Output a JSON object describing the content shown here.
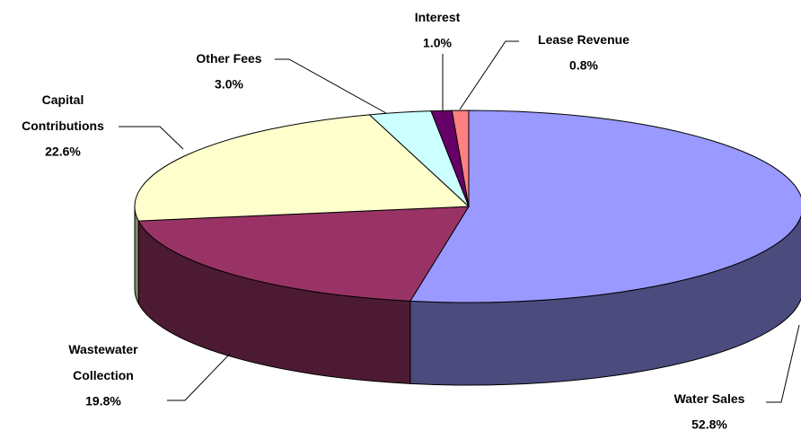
{
  "chart_data": {
    "type": "pie3d",
    "categories": [
      "Water Sales",
      "Wastewater Collection",
      "Capital Contributions",
      "Other Fees",
      "Interest",
      "Lease Revenue"
    ],
    "values": [
      52.8,
      19.8,
      22.6,
      3.0,
      1.0,
      0.8
    ],
    "value_labels": [
      "52.8%",
      "19.8%",
      "22.6%",
      "3.0%",
      "1.0%",
      "0.8%"
    ],
    "colors": [
      "#9999ff",
      "#993366",
      "#ffffcc",
      "#ccffff",
      "#660066",
      "#ff8080"
    ],
    "side_colors": [
      "#4b4b7e",
      "#4d1a33",
      "#8a8a6e",
      "#6e8a8a",
      "#330033",
      "#804040"
    ]
  }
}
